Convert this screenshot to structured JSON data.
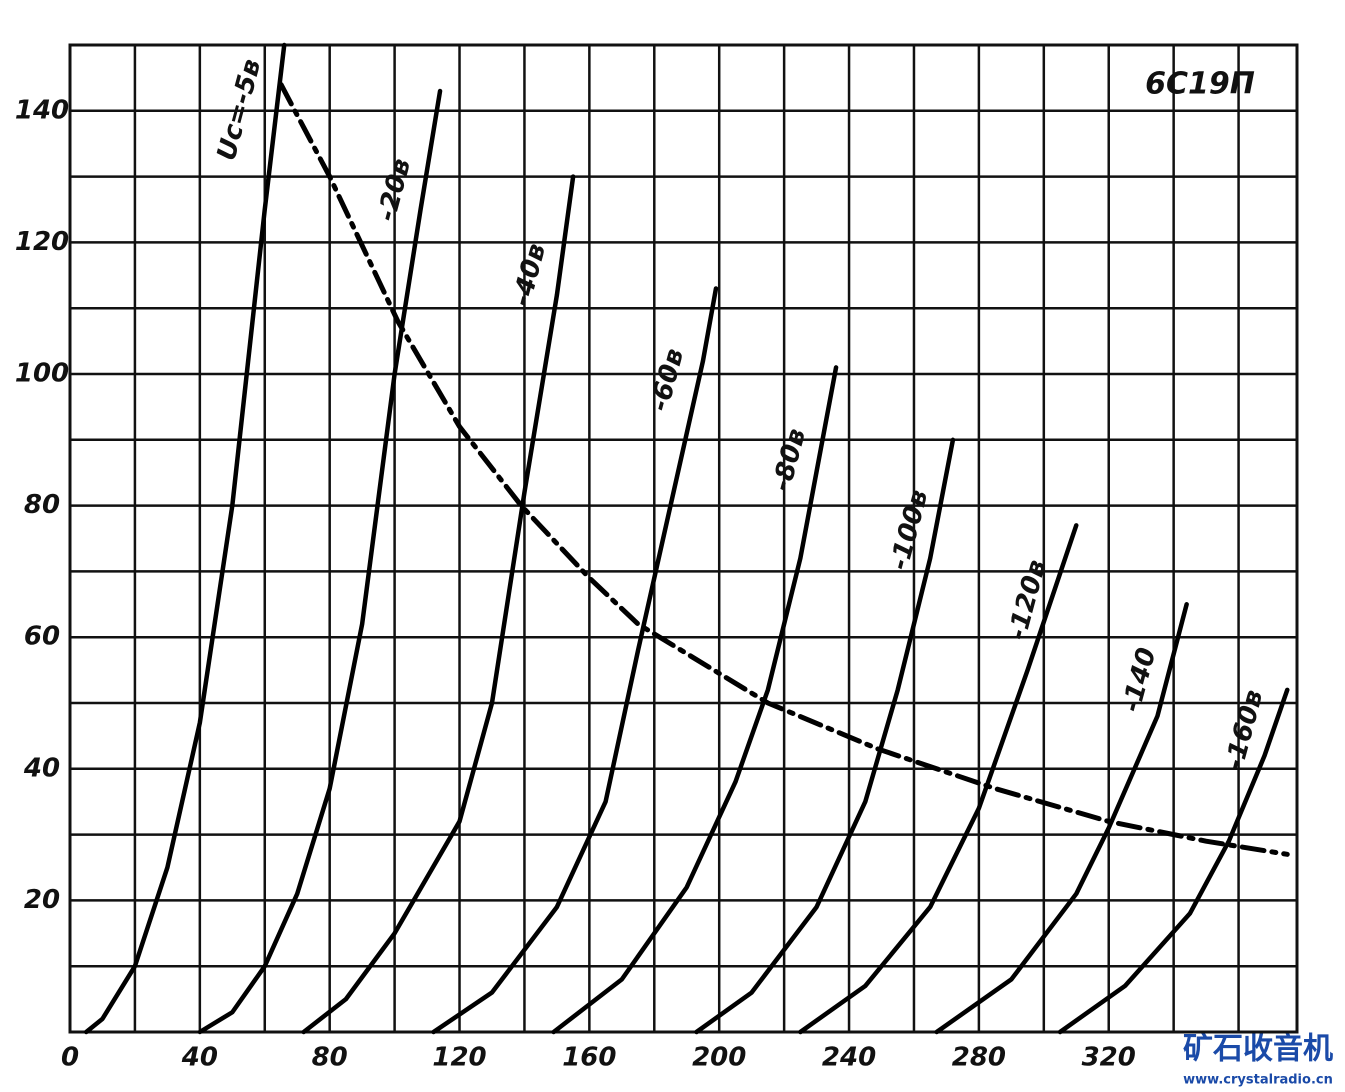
{
  "chart_data": {
    "type": "line",
    "title": "6C19П",
    "xlim": [
      0,
      378
    ],
    "ylim": [
      0,
      150
    ],
    "xticks": [
      0,
      40,
      80,
      120,
      160,
      200,
      240,
      280,
      320
    ],
    "yticks": [
      20,
      40,
      60,
      80,
      100,
      120,
      140
    ],
    "x_minor_ticks": [
      20,
      60,
      100,
      140,
      180,
      220,
      260,
      300,
      340,
      360
    ],
    "y_minor_ticks": [
      10,
      30,
      50,
      70,
      90,
      110,
      130
    ],
    "grid": true,
    "series": [
      {
        "name": "Uc=-5в",
        "color": "#000000",
        "x": [
          5,
          10,
          20,
          30,
          40,
          50,
          60,
          66
        ],
        "values": [
          0,
          2,
          10,
          25,
          47,
          80,
          125,
          150
        ]
      },
      {
        "name": "-20в",
        "color": "#000000",
        "x": [
          40,
          50,
          60,
          70,
          80,
          90,
          100,
          108,
          114
        ],
        "values": [
          0,
          3,
          10,
          21,
          37,
          62,
          100,
          125,
          143
        ]
      },
      {
        "name": "-40в",
        "color": "#000000",
        "x": [
          72,
          85,
          100,
          120,
          130,
          140,
          150,
          155
        ],
        "values": [
          0,
          5,
          15,
          32,
          50,
          82,
          112,
          130
        ]
      },
      {
        "name": "-60в",
        "color": "#000000",
        "x": [
          112,
          130,
          150,
          165,
          175,
          185,
          195,
          199
        ],
        "values": [
          0,
          6,
          19,
          35,
          58,
          80,
          102,
          113
        ]
      },
      {
        "name": "-80в",
        "color": "#000000",
        "x": [
          149,
          170,
          190,
          205,
          215,
          225,
          236
        ],
        "values": [
          0,
          8,
          22,
          38,
          52,
          72,
          101
        ]
      },
      {
        "name": "-100в",
        "color": "#000000",
        "x": [
          193,
          210,
          230,
          245,
          255,
          265,
          272
        ],
        "values": [
          0,
          6,
          19,
          35,
          52,
          72,
          90
        ]
      },
      {
        "name": "-120в",
        "color": "#000000",
        "x": [
          225,
          245,
          265,
          280,
          295,
          310
        ],
        "values": [
          0,
          7,
          19,
          34,
          55,
          77
        ]
      },
      {
        "name": "-140",
        "color": "#000000",
        "x": [
          267,
          290,
          310,
          320,
          335,
          344
        ],
        "values": [
          0,
          8,
          21,
          31,
          48,
          65
        ]
      },
      {
        "name": "-160в",
        "color": "#000000",
        "x": [
          305,
          325,
          345,
          357,
          368,
          375
        ],
        "values": [
          0,
          7,
          18,
          29,
          42,
          52
        ]
      },
      {
        "color": "#000000",
        "dashed": true,
        "x": [
          65,
          80,
          101,
          120,
          139,
          160,
          175,
          215,
          249,
          285,
          320,
          350,
          375
        ],
        "values": [
          144,
          130,
          108,
          92,
          80,
          69,
          62,
          50,
          43,
          37,
          32,
          29,
          27
        ]
      }
    ]
  },
  "watermark": {
    "title": "矿石收音机",
    "url": "www.crystalradio.cn"
  }
}
